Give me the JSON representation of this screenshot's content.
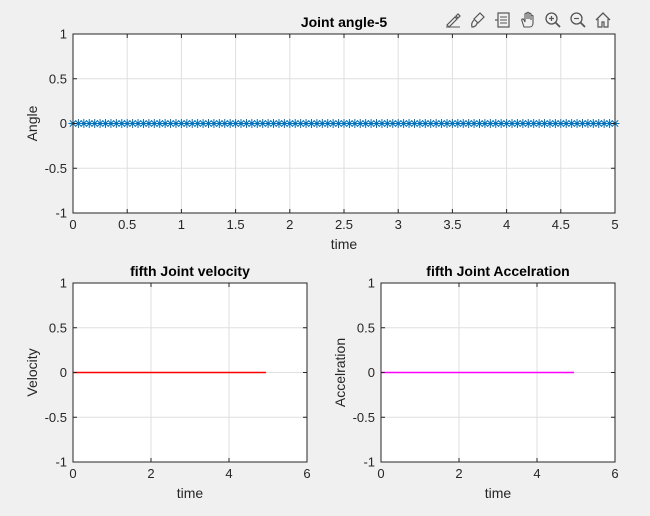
{
  "toolbar": {
    "tools": [
      {
        "name": "edit-plot-icon"
      },
      {
        "name": "brush-icon"
      },
      {
        "name": "data-cursor-icon"
      },
      {
        "name": "pan-hand-icon"
      },
      {
        "name": "zoom-in-icon"
      },
      {
        "name": "zoom-out-icon"
      },
      {
        "name": "home-icon"
      }
    ]
  },
  "colors": {
    "background": "#f0f0f0",
    "axes_bg": "#ffffff",
    "angle_series": "#0072bd",
    "velocity_series": "#ff0000",
    "acceleration_series": "#ff00ff",
    "grid": "#dfdfdf",
    "axis": "#262626"
  },
  "chart_data": [
    {
      "id": "angle",
      "type": "line",
      "title": "Joint angle-5",
      "xlabel": "time",
      "ylabel": "Angle",
      "xlim": [
        0,
        5
      ],
      "ylim": [
        -1,
        1
      ],
      "xticks": [
        "0",
        "0.5",
        "1",
        "1.5",
        "2",
        "2.5",
        "3",
        "3.5",
        "4",
        "4.5",
        "5"
      ],
      "yticks": [
        "-1",
        "-0.5",
        "0",
        "0.5",
        "1"
      ],
      "grid": true,
      "marker": "*",
      "series": [
        {
          "x_start": 0,
          "x_end": 5,
          "x_step": 0.05,
          "y_constant": 0
        }
      ]
    },
    {
      "id": "velocity",
      "type": "line",
      "title": "fifth Joint velocity",
      "xlabel": "time",
      "ylabel": "Velocity",
      "xlim": [
        0,
        6
      ],
      "ylim": [
        -1,
        1
      ],
      "xticks": [
        "0",
        "2",
        "4",
        "6"
      ],
      "yticks": [
        "-1",
        "-0.5",
        "0",
        "0.5",
        "1"
      ],
      "grid": true,
      "series": [
        {
          "x": [
            0,
            4.95
          ],
          "y": [
            0,
            0
          ]
        }
      ]
    },
    {
      "id": "acceleration",
      "type": "line",
      "title": "fifth Joint Accelration",
      "xlabel": "time",
      "ylabel": "Accelration",
      "xlim": [
        0,
        6
      ],
      "ylim": [
        -1,
        1
      ],
      "xticks": [
        "0",
        "2",
        "4",
        "6"
      ],
      "yticks": [
        "-1",
        "-0.5",
        "0",
        "0.5",
        "1"
      ],
      "grid": true,
      "series": [
        {
          "x": [
            0,
            4.95
          ],
          "y": [
            0,
            0
          ]
        }
      ]
    }
  ]
}
